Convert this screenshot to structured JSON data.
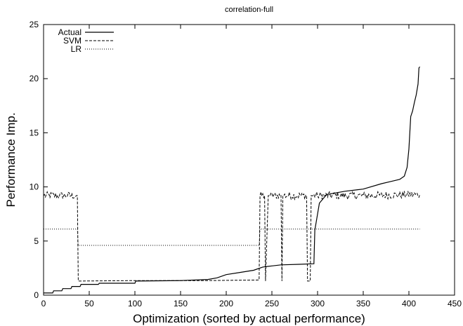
{
  "chart_data": {
    "type": "line",
    "title": "correlation-full",
    "xlabel": "Optimization (sorted by actual performance)",
    "ylabel": "Performance Imp.",
    "xlim": [
      0,
      450
    ],
    "ylim": [
      0,
      25
    ],
    "xticks": [
      0,
      50,
      100,
      150,
      200,
      250,
      300,
      350,
      400,
      450
    ],
    "yticks": [
      0,
      5,
      10,
      15,
      20,
      25
    ],
    "grid": false,
    "legend_position": "top-left",
    "series": [
      {
        "name": "Actual",
        "style": "solid",
        "x": [
          0,
          10,
          11,
          20,
          21,
          30,
          31,
          40,
          41,
          60,
          61,
          100,
          101,
          150,
          180,
          190,
          200,
          215,
          230,
          240,
          250,
          260,
          280,
          296,
          297,
          300,
          302,
          310,
          330,
          350,
          370,
          380,
          390,
          395,
          398,
          400,
          402,
          404,
          406,
          408,
          410,
          411,
          412
        ],
        "y": [
          0.2,
          0.2,
          0.4,
          0.4,
          0.6,
          0.6,
          0.8,
          0.8,
          1.0,
          1.0,
          1.1,
          1.1,
          1.3,
          1.35,
          1.45,
          1.6,
          1.9,
          2.1,
          2.3,
          2.6,
          2.7,
          2.8,
          2.85,
          2.9,
          6.0,
          7.5,
          8.5,
          9.3,
          9.6,
          9.8,
          10.3,
          10.5,
          10.7,
          11.0,
          11.8,
          13.5,
          16.5,
          17.0,
          17.8,
          18.5,
          19.5,
          21.0,
          21.1
        ]
      },
      {
        "name": "SVM",
        "style": "dashed",
        "x": [
          0,
          37,
          38,
          100,
          180,
          236,
          237,
          242,
          243,
          246,
          247,
          260,
          261,
          262,
          263,
          288,
          289,
          292,
          293,
          300,
          350,
          412
        ],
        "y": [
          9.2,
          9.2,
          1.3,
          1.35,
          1.35,
          1.4,
          9.2,
          9.2,
          1.3,
          9.2,
          9.2,
          9.2,
          1.3,
          9.2,
          9.2,
          9.2,
          1.3,
          1.3,
          9.2,
          9.2,
          9.2,
          9.3
        ],
        "jitter": 0.35
      },
      {
        "name": "LR",
        "style": "dotted",
        "x": [
          0,
          37,
          38,
          236,
          237,
          412
        ],
        "y": [
          6.1,
          6.1,
          4.6,
          4.6,
          6.1,
          6.1
        ]
      }
    ]
  }
}
